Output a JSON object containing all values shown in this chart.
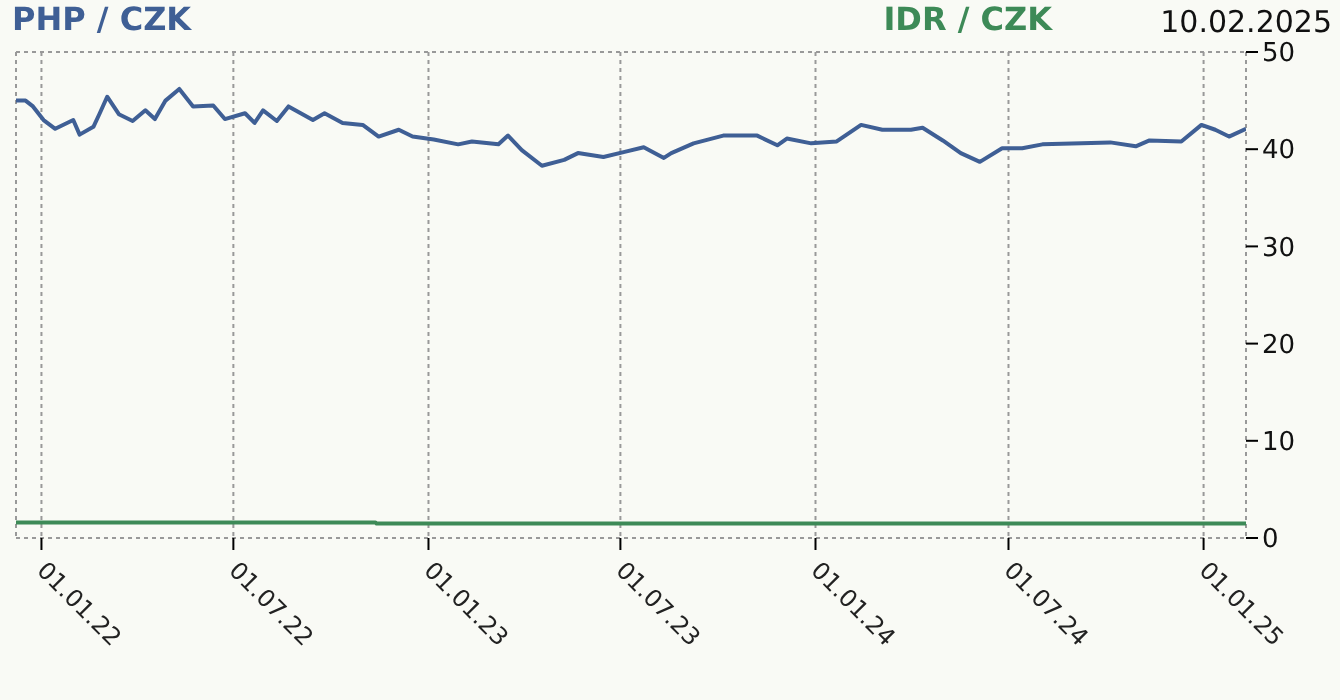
{
  "chart_data": {
    "type": "line",
    "annotations": [
      "10.02.2025"
    ],
    "series": [
      {
        "name": "PHP / CZK",
        "color": "#3f5f95",
        "x": [
          "2021-12-08",
          "2021-12-17",
          "2021-12-24",
          "2022-01-03",
          "2022-01-14",
          "2022-01-31",
          "2022-02-06",
          "2022-02-19",
          "2022-02-25",
          "2022-03-04",
          "2022-03-15",
          "2022-03-28",
          "2022-04-09",
          "2022-04-18",
          "2022-04-28",
          "2022-05-11",
          "2022-05-24",
          "2022-06-12",
          "2022-06-23",
          "2022-07-12",
          "2022-07-21",
          "2022-07-29",
          "2022-08-11",
          "2022-08-22",
          "2022-09-14",
          "2022-09-25",
          "2022-10-12",
          "2022-10-31",
          "2022-11-15",
          "2022-12-04",
          "2022-12-17",
          "2023-01-06",
          "2023-01-29",
          "2023-02-11",
          "2023-03-08",
          "2023-03-17",
          "2023-03-30",
          "2023-04-18",
          "2023-05-09",
          "2023-05-22",
          "2023-06-15",
          "2023-07-04",
          "2023-07-23",
          "2023-08-11",
          "2023-08-18",
          "2023-09-08",
          "2023-10-06",
          "2023-11-07",
          "2023-11-26",
          "2023-12-05",
          "2023-12-28",
          "2024-01-21",
          "2024-02-13",
          "2024-03-04",
          "2024-03-31",
          "2024-04-11",
          "2024-04-30",
          "2024-05-17",
          "2024-06-04",
          "2024-06-25",
          "2024-07-14",
          "2024-08-02",
          "2024-09-08",
          "2024-10-05",
          "2024-10-29",
          "2024-11-11",
          "2024-12-11",
          "2024-12-30",
          "2025-01-12",
          "2025-01-25",
          "2025-02-10"
        ],
        "values": [
          45.0,
          45.0,
          44.4,
          43.0,
          42.1,
          43.0,
          41.5,
          42.3,
          43.7,
          45.4,
          43.6,
          42.9,
          44.0,
          43.1,
          45.0,
          46.2,
          44.4,
          44.5,
          43.1,
          43.7,
          42.7,
          44.0,
          42.9,
          44.4,
          43.0,
          43.7,
          42.7,
          42.5,
          41.3,
          42.0,
          41.3,
          41.0,
          40.5,
          40.8,
          40.5,
          41.4,
          39.9,
          38.3,
          38.9,
          39.6,
          39.2,
          39.7,
          40.2,
          39.1,
          39.6,
          40.6,
          41.4,
          41.4,
          40.4,
          41.1,
          40.6,
          40.8,
          42.5,
          42.0,
          42.0,
          42.2,
          40.9,
          39.6,
          38.7,
          40.1,
          40.1,
          40.5,
          40.6,
          40.7,
          40.3,
          40.9,
          40.8,
          42.5,
          42.0,
          41.3,
          42.1
        ]
      },
      {
        "name": "IDR / CZK",
        "type": "line",
        "color": "#3d8a57",
        "x": [
          "2021-12-08",
          "2022-11-12",
          "2022-11-13",
          "2025-02-10"
        ],
        "values": [
          1.6,
          1.6,
          1.5,
          1.5
        ]
      }
    ],
    "xlim": [
      "2021-12-08",
      "2025-02-10"
    ],
    "xticks": [
      {
        "value": "2022-01-01",
        "label": "01.01.22"
      },
      {
        "value": "2022-07-01",
        "label": "01.07.22"
      },
      {
        "value": "2023-01-01",
        "label": "01.01.23"
      },
      {
        "value": "2023-07-01",
        "label": "01.07.23"
      },
      {
        "value": "2024-01-01",
        "label": "01.01.24"
      },
      {
        "value": "2024-07-01",
        "label": "01.07.24"
      },
      {
        "value": "2025-01-01",
        "label": "01.01.25"
      }
    ],
    "ylim": [
      0,
      50
    ],
    "yticks": [
      0,
      10,
      20,
      30,
      40,
      50
    ],
    "grid": true,
    "legend": "top",
    "marker": "none",
    "line_style": "solid"
  }
}
